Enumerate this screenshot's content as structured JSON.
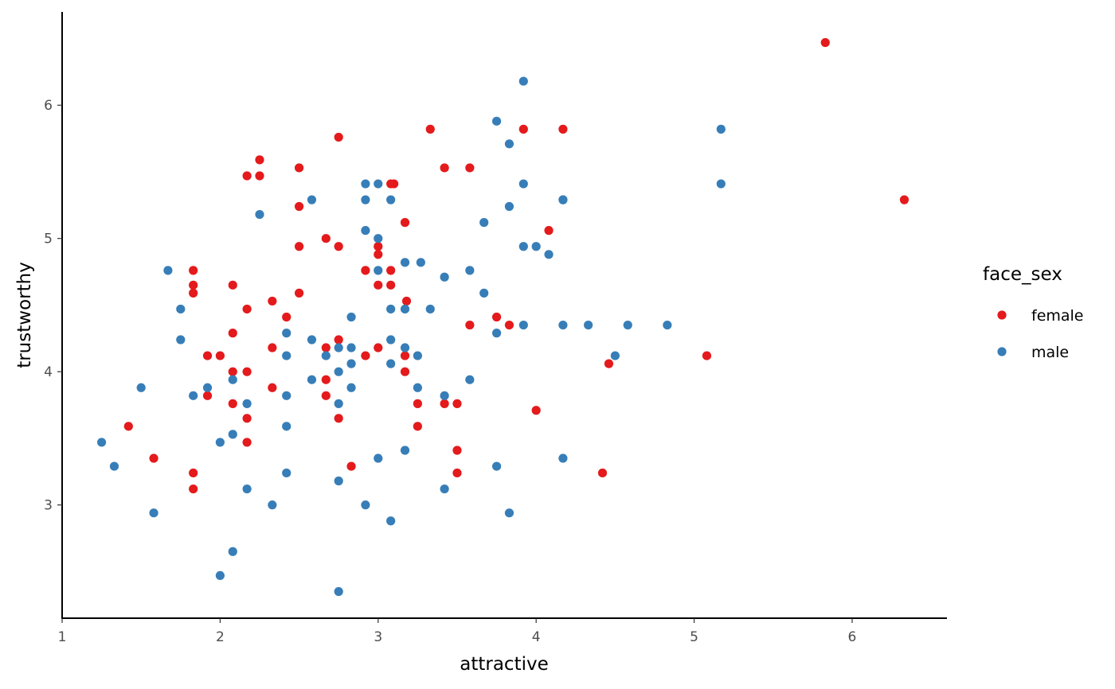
{
  "chart_data": {
    "type": "scatter",
    "xlabel": "attractive",
    "ylabel": "trustworthy",
    "xlim": [
      1,
      6.6
    ],
    "ylim": [
      2.15,
      6.7
    ],
    "xticks": [
      "1",
      "2",
      "3",
      "4",
      "5",
      "6"
    ],
    "yticks": [
      "3",
      "4",
      "5",
      "6"
    ],
    "grid": false,
    "legend": {
      "title": "face_sex",
      "placement": "right",
      "entries": [
        {
          "label": "female",
          "color": "#e41a1c"
        },
        {
          "label": "male",
          "color": "#377eb8"
        }
      ]
    },
    "series": [
      {
        "name": "female",
        "color": "#e41a1c",
        "points": [
          [
            5.83,
            6.47
          ],
          [
            6.33,
            5.29
          ],
          [
            5.08,
            4.12
          ],
          [
            4.46,
            4.06
          ],
          [
            4.42,
            3.24
          ],
          [
            4.0,
            3.71
          ],
          [
            4.08,
            5.06
          ],
          [
            4.17,
            5.82
          ],
          [
            3.92,
            5.82
          ],
          [
            3.75,
            4.41
          ],
          [
            3.83,
            4.35
          ],
          [
            3.58,
            5.53
          ],
          [
            3.58,
            4.35
          ],
          [
            3.42,
            5.53
          ],
          [
            3.33,
            5.82
          ],
          [
            3.42,
            3.76
          ],
          [
            3.5,
            3.76
          ],
          [
            3.5,
            3.41
          ],
          [
            3.5,
            3.24
          ],
          [
            3.25,
            3.76
          ],
          [
            3.25,
            3.59
          ],
          [
            3.18,
            4.53
          ],
          [
            3.17,
            5.12
          ],
          [
            3.17,
            4.12
          ],
          [
            3.17,
            4.0
          ],
          [
            3.08,
            5.41
          ],
          [
            3.1,
            5.41
          ],
          [
            3.08,
            4.76
          ],
          [
            3.08,
            4.65
          ],
          [
            3.0,
            4.94
          ],
          [
            3.0,
            4.88
          ],
          [
            3.0,
            4.65
          ],
          [
            3.0,
            4.18
          ],
          [
            2.92,
            4.76
          ],
          [
            2.92,
            4.12
          ],
          [
            2.83,
            3.29
          ],
          [
            2.75,
            5.76
          ],
          [
            2.75,
            4.94
          ],
          [
            2.75,
            4.24
          ],
          [
            2.75,
            3.65
          ],
          [
            2.67,
            5.0
          ],
          [
            2.67,
            4.18
          ],
          [
            2.67,
            3.94
          ],
          [
            2.67,
            3.82
          ],
          [
            2.5,
            5.53
          ],
          [
            2.5,
            5.24
          ],
          [
            2.5,
            4.94
          ],
          [
            2.5,
            4.59
          ],
          [
            2.42,
            4.41
          ],
          [
            2.33,
            4.53
          ],
          [
            2.33,
            4.18
          ],
          [
            2.33,
            3.88
          ],
          [
            2.25,
            5.59
          ],
          [
            2.25,
            5.47
          ],
          [
            2.17,
            5.47
          ],
          [
            2.17,
            4.47
          ],
          [
            2.17,
            4.0
          ],
          [
            2.17,
            3.65
          ],
          [
            2.17,
            3.47
          ],
          [
            2.08,
            4.65
          ],
          [
            2.08,
            4.29
          ],
          [
            2.08,
            4.0
          ],
          [
            2.08,
            3.76
          ],
          [
            2.0,
            4.12
          ],
          [
            1.92,
            4.12
          ],
          [
            1.92,
            3.82
          ],
          [
            1.83,
            4.76
          ],
          [
            1.83,
            4.65
          ],
          [
            1.83,
            4.59
          ],
          [
            1.83,
            3.24
          ],
          [
            1.83,
            3.12
          ],
          [
            1.58,
            3.35
          ],
          [
            1.42,
            3.59
          ]
        ]
      },
      {
        "name": "male",
        "color": "#377eb8",
        "points": [
          [
            3.92,
            6.18
          ],
          [
            3.75,
            5.88
          ],
          [
            3.83,
            5.71
          ],
          [
            3.92,
            5.41
          ],
          [
            4.17,
            5.29
          ],
          [
            4.17,
            5.29
          ],
          [
            3.83,
            5.24
          ],
          [
            3.67,
            5.12
          ],
          [
            3.92,
            4.94
          ],
          [
            4.0,
            4.94
          ],
          [
            4.08,
            4.88
          ],
          [
            3.58,
            4.76
          ],
          [
            3.67,
            4.59
          ],
          [
            3.42,
            4.71
          ],
          [
            3.33,
            4.47
          ],
          [
            3.92,
            4.35
          ],
          [
            4.17,
            4.35
          ],
          [
            4.33,
            4.35
          ],
          [
            4.58,
            4.35
          ],
          [
            4.83,
            4.35
          ],
          [
            3.75,
            4.29
          ],
          [
            4.5,
            4.12
          ],
          [
            3.58,
            3.94
          ],
          [
            3.42,
            3.82
          ],
          [
            3.42,
            3.12
          ],
          [
            3.75,
            3.29
          ],
          [
            3.83,
            2.94
          ],
          [
            4.17,
            3.35
          ],
          [
            5.17,
            5.82
          ],
          [
            5.17,
            5.41
          ],
          [
            2.92,
            5.41
          ],
          [
            3.0,
            5.41
          ],
          [
            2.92,
            5.29
          ],
          [
            3.08,
            5.29
          ],
          [
            2.92,
            5.06
          ],
          [
            3.0,
            5.0
          ],
          [
            3.0,
            4.76
          ],
          [
            3.17,
            4.82
          ],
          [
            3.27,
            4.82
          ],
          [
            3.08,
            4.47
          ],
          [
            3.17,
            4.47
          ],
          [
            3.08,
            4.24
          ],
          [
            3.17,
            4.18
          ],
          [
            3.25,
            4.12
          ],
          [
            3.08,
            4.06
          ],
          [
            3.25,
            3.88
          ],
          [
            3.17,
            3.41
          ],
          [
            3.0,
            3.35
          ],
          [
            2.92,
            3.0
          ],
          [
            3.08,
            2.88
          ],
          [
            2.83,
            4.41
          ],
          [
            2.83,
            4.18
          ],
          [
            2.75,
            4.18
          ],
          [
            2.67,
            4.12
          ],
          [
            2.83,
            4.06
          ],
          [
            2.75,
            4.0
          ],
          [
            2.58,
            3.94
          ],
          [
            2.83,
            3.88
          ],
          [
            2.75,
            3.76
          ],
          [
            2.75,
            3.18
          ],
          [
            2.75,
            2.35
          ],
          [
            2.58,
            5.29
          ],
          [
            2.58,
            4.24
          ],
          [
            2.42,
            4.29
          ],
          [
            2.42,
            4.12
          ],
          [
            2.42,
            3.82
          ],
          [
            2.42,
            3.59
          ],
          [
            2.42,
            3.24
          ],
          [
            2.33,
            3.0
          ],
          [
            2.25,
            5.18
          ],
          [
            2.17,
            3.76
          ],
          [
            2.17,
            3.12
          ],
          [
            2.08,
            3.94
          ],
          [
            2.08,
            3.53
          ],
          [
            2.08,
            2.65
          ],
          [
            2.0,
            3.47
          ],
          [
            2.0,
            2.47
          ],
          [
            1.92,
            3.88
          ],
          [
            1.83,
            3.82
          ],
          [
            1.75,
            4.47
          ],
          [
            1.75,
            4.24
          ],
          [
            1.67,
            4.76
          ],
          [
            1.58,
            2.94
          ],
          [
            1.5,
            3.88
          ],
          [
            1.33,
            3.29
          ],
          [
            1.25,
            3.47
          ]
        ]
      }
    ]
  }
}
